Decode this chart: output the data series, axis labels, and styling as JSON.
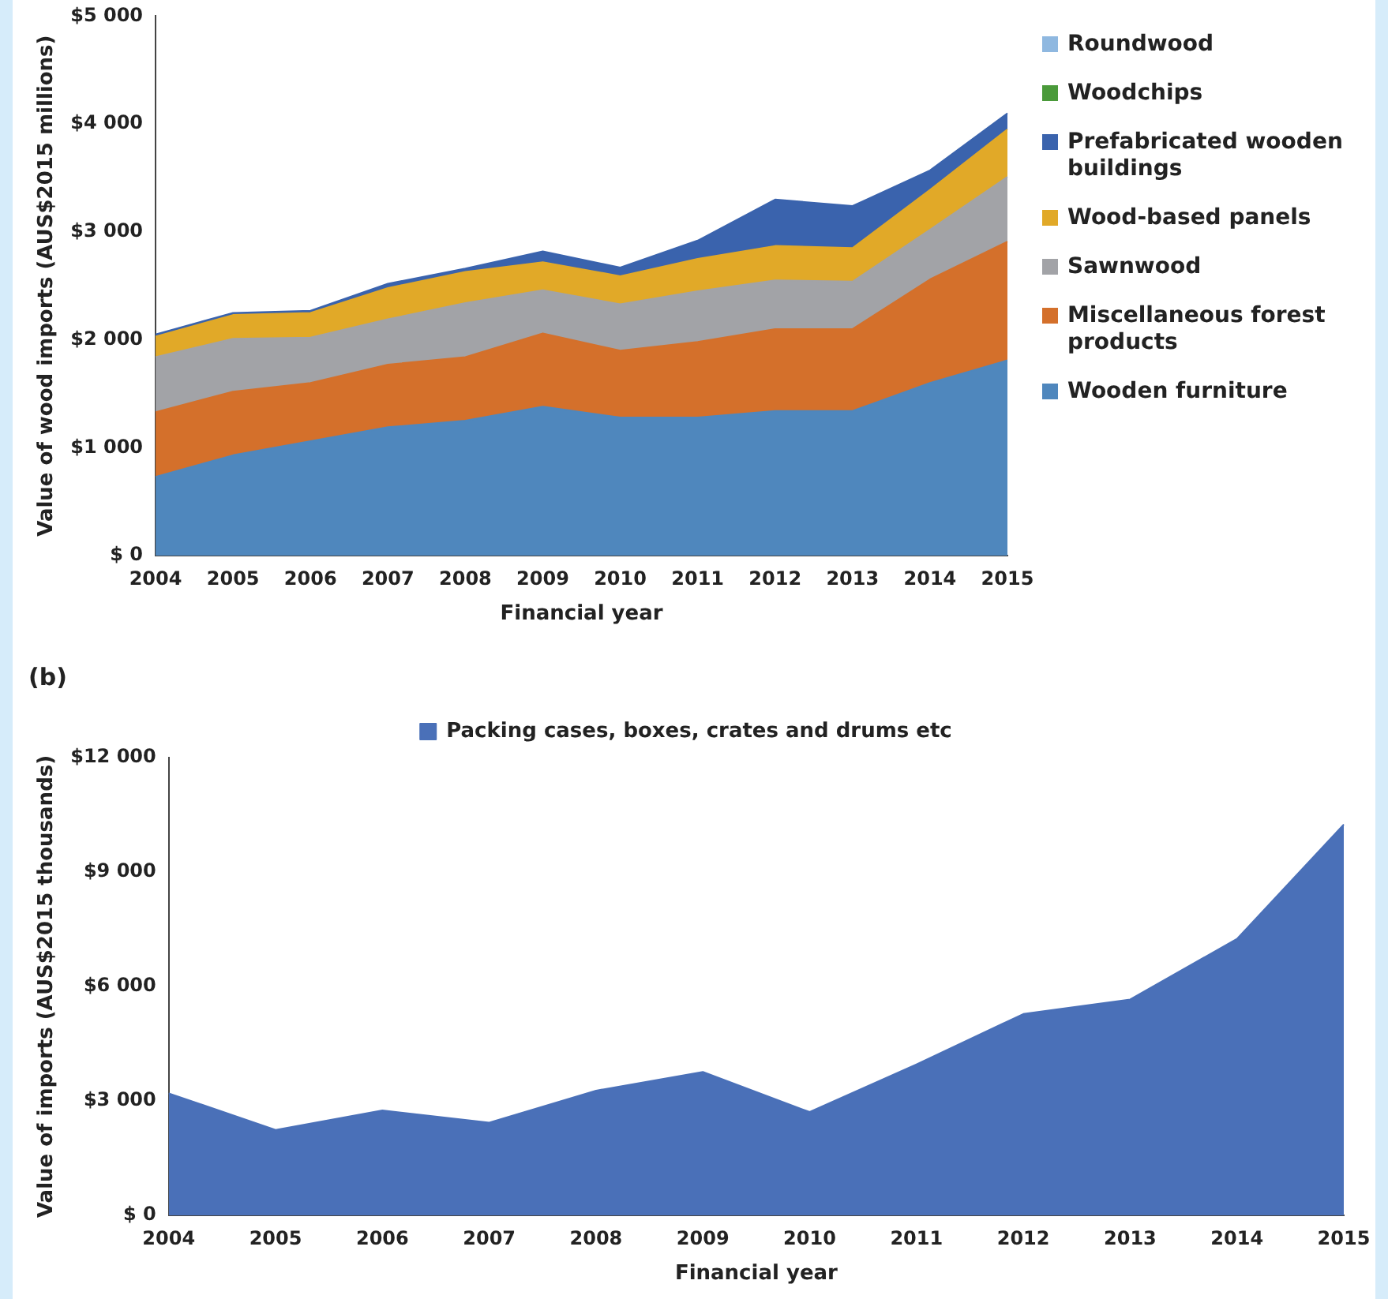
{
  "chart_data": [
    {
      "type": "area",
      "stacked": true,
      "xlabel": "Financial year",
      "ylabel": "Value of wood imports (AUS$2015 millions)",
      "categories": [
        "2004",
        "2005",
        "2006",
        "2007",
        "2008",
        "2009",
        "2010",
        "2011",
        "2012",
        "2013",
        "2014",
        "2015"
      ],
      "ylim": [
        0,
        5000
      ],
      "yticks": [
        {
          "value": 0,
          "label": "$ 0"
        },
        {
          "value": 1000,
          "label": "$1 000"
        },
        {
          "value": 2000,
          "label": "$2 000"
        },
        {
          "value": 3000,
          "label": "$3 000"
        },
        {
          "value": 4000,
          "label": "$4 000"
        },
        {
          "value": 5000,
          "label": "$5 000"
        }
      ],
      "legend": "right",
      "series": [
        {
          "name": "Wooden furniture",
          "color": "#4f87bd",
          "values": [
            730,
            930,
            1060,
            1190,
            1250,
            1380,
            1280,
            1280,
            1340,
            1340,
            1600,
            1810
          ]
        },
        {
          "name": "Miscellaneous forest products",
          "color": "#d4702b",
          "values": [
            600,
            590,
            540,
            580,
            590,
            680,
            620,
            700,
            760,
            760,
            960,
            1100
          ]
        },
        {
          "name": "Sawnwood",
          "color": "#a2a3a7",
          "values": [
            510,
            490,
            420,
            420,
            500,
            400,
            430,
            470,
            450,
            440,
            460,
            600
          ]
        },
        {
          "name": "Wood-based panels",
          "color": "#e1a928",
          "values": [
            190,
            220,
            230,
            290,
            290,
            260,
            260,
            300,
            320,
            310,
            370,
            440
          ]
        },
        {
          "name": "Prefabricated wooden buildings",
          "color": "#3a63ad",
          "values": [
            20,
            20,
            20,
            40,
            30,
            100,
            80,
            170,
            430,
            390,
            180,
            150
          ]
        },
        {
          "name": "Woodchips",
          "color": "#4a9a3a",
          "values": [
            null,
            null,
            null,
            null,
            null,
            null,
            null,
            null,
            null,
            null,
            null,
            null
          ]
        },
        {
          "name": "Roundwood",
          "color": "#8fb8e0",
          "values": [
            null,
            null,
            null,
            null,
            null,
            null,
            null,
            null,
            null,
            null,
            null,
            null
          ]
        }
      ]
    },
    {
      "type": "area",
      "title": "(b)",
      "xlabel": "Financial year",
      "ylabel": "Value of imports (AUS$2015 thousands)",
      "categories": [
        "2004",
        "2005",
        "2006",
        "2007",
        "2008",
        "2009",
        "2010",
        "2011",
        "2012",
        "2013",
        "2014",
        "2015"
      ],
      "ylim": [
        0,
        12000
      ],
      "yticks": [
        {
          "value": 0,
          "label": "$ 0"
        },
        {
          "value": 3000,
          "label": "$3 000"
        },
        {
          "value": 6000,
          "label": "$6 000"
        },
        {
          "value": 9000,
          "label": "$9 000"
        },
        {
          "value": 12000,
          "label": "$12 000"
        }
      ],
      "legend": "top",
      "series": [
        {
          "name": "Packing cases, boxes, crates and drums etc",
          "color": "#4a70b8",
          "values": [
            3200,
            2240,
            2750,
            2430,
            3270,
            3760,
            2710,
            3960,
            5280,
            5660,
            7250,
            10250
          ]
        }
      ]
    }
  ]
}
